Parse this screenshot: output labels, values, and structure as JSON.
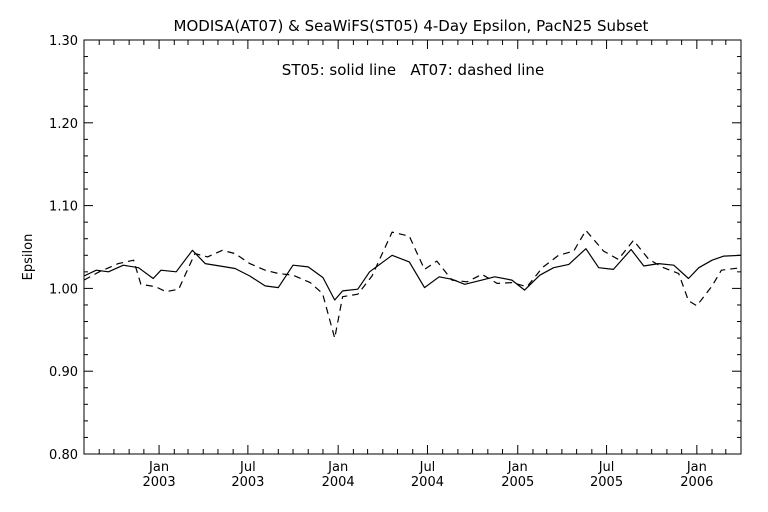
{
  "chart_data": {
    "type": "line",
    "title": "MODISA(AT07) & SeaWiFS(ST05) 4-Day Epsilon, PacN25 Subset",
    "annotation": "ST05: solid line   AT07: dashed line",
    "xlabel": "",
    "ylabel": "Epsilon",
    "xlim": [
      "2002-08-01",
      "2006-04-01"
    ],
    "ylim": [
      0.8,
      1.3
    ],
    "yticks": [
      "0.80",
      "0.90",
      "1.00",
      "1.10",
      "1.20",
      "1.30"
    ],
    "xticks": [
      {
        "date": "2003-01-01",
        "month": "Jan",
        "year": "2003"
      },
      {
        "date": "2003-07-01",
        "month": "Jul",
        "year": "2003"
      },
      {
        "date": "2004-01-01",
        "month": "Jan",
        "year": "2004"
      },
      {
        "date": "2004-07-01",
        "month": "Jul",
        "year": "2004"
      },
      {
        "date": "2005-01-01",
        "month": "Jan",
        "year": "2005"
      },
      {
        "date": "2005-07-01",
        "month": "Jul",
        "year": "2005"
      },
      {
        "date": "2006-01-01",
        "month": "Jan",
        "year": "2006"
      }
    ],
    "grid": false,
    "series": [
      {
        "name": "ST05",
        "style": "solid",
        "points": [
          [
            "2002-08-01",
            1.015
          ],
          [
            "2002-08-26",
            1.022
          ],
          [
            "2002-09-20",
            1.02
          ],
          [
            "2002-10-20",
            1.028
          ],
          [
            "2002-11-20",
            1.025
          ],
          [
            "2002-12-20",
            1.012
          ],
          [
            "2003-01-05",
            1.022
          ],
          [
            "2003-02-05",
            1.02
          ],
          [
            "2003-03-10",
            1.046
          ],
          [
            "2003-04-05",
            1.03
          ],
          [
            "2003-05-05",
            1.027
          ],
          [
            "2003-06-05",
            1.024
          ],
          [
            "2003-07-05",
            1.015
          ],
          [
            "2003-08-05",
            1.003
          ],
          [
            "2003-09-01",
            1.001
          ],
          [
            "2003-10-01",
            1.028
          ],
          [
            "2003-11-01",
            1.026
          ],
          [
            "2003-12-01",
            1.013
          ],
          [
            "2003-12-25",
            0.986
          ],
          [
            "2004-01-10",
            0.997
          ],
          [
            "2004-02-10",
            0.999
          ],
          [
            "2004-03-05",
            1.02
          ],
          [
            "2004-04-20",
            1.04
          ],
          [
            "2004-05-25",
            1.032
          ],
          [
            "2004-06-25",
            1.001
          ],
          [
            "2004-07-25",
            1.014
          ],
          [
            "2004-08-20",
            1.011
          ],
          [
            "2004-09-15",
            1.005
          ],
          [
            "2004-10-20",
            1.01
          ],
          [
            "2004-11-15",
            1.014
          ],
          [
            "2004-12-20",
            1.01
          ],
          [
            "2005-01-15",
            0.998
          ],
          [
            "2005-02-15",
            1.016
          ],
          [
            "2005-03-15",
            1.025
          ],
          [
            "2005-04-15",
            1.029
          ],
          [
            "2005-05-20",
            1.048
          ],
          [
            "2005-06-15",
            1.025
          ],
          [
            "2005-07-15",
            1.023
          ],
          [
            "2005-08-20",
            1.047
          ],
          [
            "2005-09-15",
            1.027
          ],
          [
            "2005-10-15",
            1.03
          ],
          [
            "2005-11-15",
            1.028
          ],
          [
            "2005-12-15",
            1.012
          ],
          [
            "2006-01-05",
            1.025
          ],
          [
            "2006-02-01",
            1.034
          ],
          [
            "2006-02-25",
            1.039
          ],
          [
            "2006-04-01",
            1.04
          ]
        ]
      },
      {
        "name": "AT07",
        "style": "dashed",
        "points": [
          [
            "2002-08-01",
            1.01
          ],
          [
            "2002-09-01",
            1.02
          ],
          [
            "2002-10-10",
            1.03
          ],
          [
            "2002-11-10",
            1.034
          ],
          [
            "2002-11-25",
            1.005
          ],
          [
            "2002-12-25",
            1.002
          ],
          [
            "2003-01-15",
            0.996
          ],
          [
            "2003-02-10",
            0.999
          ],
          [
            "2003-03-15",
            1.042
          ],
          [
            "2003-04-10",
            1.038
          ],
          [
            "2003-05-10",
            1.046
          ],
          [
            "2003-06-05",
            1.042
          ],
          [
            "2003-07-05",
            1.03
          ],
          [
            "2003-08-05",
            1.022
          ],
          [
            "2003-09-01",
            1.018
          ],
          [
            "2003-10-01",
            1.016
          ],
          [
            "2003-11-05",
            1.007
          ],
          [
            "2003-11-30",
            0.994
          ],
          [
            "2003-12-25",
            0.94
          ],
          [
            "2004-01-10",
            0.99
          ],
          [
            "2004-02-10",
            0.993
          ],
          [
            "2004-03-10",
            1.015
          ],
          [
            "2004-04-20",
            1.068
          ],
          [
            "2004-05-25",
            1.063
          ],
          [
            "2004-06-25",
            1.023
          ],
          [
            "2004-07-20",
            1.033
          ],
          [
            "2004-08-20",
            1.01
          ],
          [
            "2004-09-20",
            1.008
          ],
          [
            "2004-10-20",
            1.017
          ],
          [
            "2004-11-20",
            1.006
          ],
          [
            "2004-12-20",
            1.007
          ],
          [
            "2005-01-20",
            1.002
          ],
          [
            "2005-02-20",
            1.025
          ],
          [
            "2005-03-25",
            1.04
          ],
          [
            "2005-04-25",
            1.045
          ],
          [
            "2005-05-20",
            1.07
          ],
          [
            "2005-06-25",
            1.045
          ],
          [
            "2005-07-25",
            1.035
          ],
          [
            "2005-08-25",
            1.058
          ],
          [
            "2005-09-25",
            1.035
          ],
          [
            "2005-10-25",
            1.025
          ],
          [
            "2005-11-25",
            1.018
          ],
          [
            "2005-12-15",
            0.985
          ],
          [
            "2006-01-01",
            0.979
          ],
          [
            "2006-02-01",
            1.003
          ],
          [
            "2006-02-20",
            1.022
          ],
          [
            "2006-04-01",
            1.025
          ]
        ]
      }
    ]
  }
}
